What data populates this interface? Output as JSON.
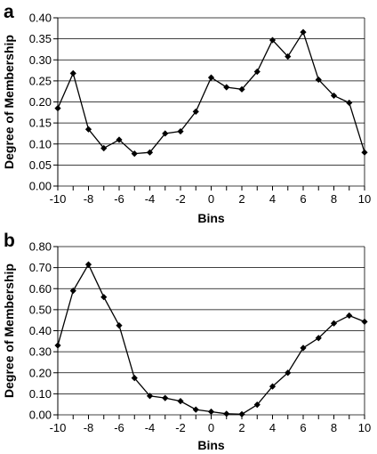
{
  "chart_data": [
    {
      "type": "line",
      "panel_label": "a",
      "title": "",
      "xlabel": "Bins",
      "ylabel": "Degree of Membership",
      "xlim": [
        -10,
        10
      ],
      "ylim": [
        0,
        0.4
      ],
      "x_ticks": [
        "-10",
        "-8",
        "-6",
        "-4",
        "-2",
        "0",
        "2",
        "4",
        "6",
        "8",
        "10"
      ],
      "y_ticks": [
        "0.00",
        "0.05",
        "0.10",
        "0.15",
        "0.20",
        "0.25",
        "0.30",
        "0.35",
        "0.40"
      ],
      "grid": "horizontal",
      "legend": "none",
      "series": [
        {
          "marker": "diamond",
          "color": "#000000",
          "x": [
            -10,
            -9,
            -8,
            -7,
            -6,
            -5,
            -4,
            -3,
            -2,
            -1,
            0,
            1,
            2,
            3,
            4,
            5,
            6,
            7,
            8,
            9,
            10
          ],
          "y": [
            0.185,
            0.268,
            0.135,
            0.09,
            0.11,
            0.077,
            0.08,
            0.125,
            0.13,
            0.177,
            0.258,
            0.235,
            0.23,
            0.272,
            0.347,
            0.308,
            0.366,
            0.253,
            0.215,
            0.198,
            0.08
          ]
        }
      ]
    },
    {
      "type": "line",
      "panel_label": "b",
      "title": "",
      "xlabel": "Bins",
      "ylabel": "Degree of Membership",
      "xlim": [
        -10,
        10
      ],
      "ylim": [
        0,
        0.8
      ],
      "x_ticks": [
        "-10",
        "-8",
        "-6",
        "-4",
        "-2",
        "0",
        "2",
        "4",
        "6",
        "8",
        "10"
      ],
      "y_ticks": [
        "0.00",
        "0.10",
        "0.20",
        "0.30",
        "0.40",
        "0.50",
        "0.60",
        "0.70",
        "0.80"
      ],
      "grid": "horizontal",
      "legend": "none",
      "series": [
        {
          "marker": "diamond",
          "color": "#000000",
          "x": [
            -10,
            -9,
            -8,
            -7,
            -6,
            -5,
            -4,
            -3,
            -2,
            -1,
            0,
            1,
            2,
            3,
            4,
            5,
            6,
            7,
            8,
            9,
            10
          ],
          "y": [
            0.33,
            0.59,
            0.715,
            0.56,
            0.425,
            0.175,
            0.09,
            0.08,
            0.065,
            0.025,
            0.015,
            0.005,
            0.003,
            0.048,
            0.135,
            0.2,
            0.318,
            0.365,
            0.435,
            0.472,
            0.443
          ]
        }
      ]
    }
  ]
}
